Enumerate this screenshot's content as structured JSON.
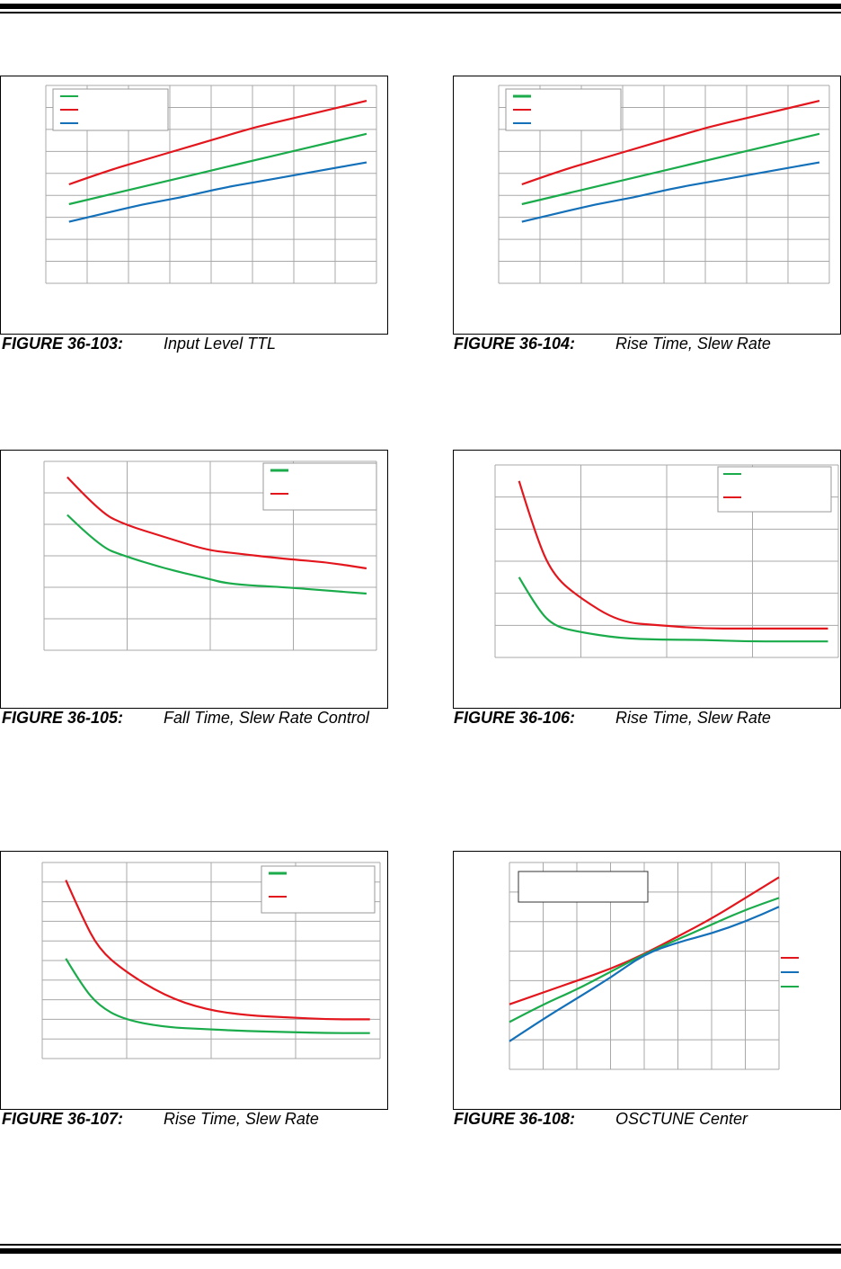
{
  "colors": {
    "green": "#1aab4b",
    "red": "#e3161d",
    "blue": "#1370b9",
    "grid": "#a8a8a8"
  },
  "captions": [
    {
      "number": "FIGURE 36-103:",
      "title": "Input Level TTL"
    },
    {
      "number": "FIGURE 36-104:",
      "title": "Rise Time, Slew Rate"
    },
    {
      "number": "FIGURE 36-105:",
      "title": "Fall Time, Slew Rate Control"
    },
    {
      "number": "FIGURE 36-106:",
      "title": "Rise Time, Slew Rate"
    },
    {
      "number": "FIGURE 36-107:",
      "title": "Rise Time, Slew Rate"
    },
    {
      "number": "FIGURE 36-108:",
      "title": "OSCTUNE Center"
    }
  ],
  "chart_data": [
    {
      "type": "line",
      "grid": true,
      "legend": "top-left",
      "x": [
        0,
        1,
        2,
        3,
        4,
        5,
        6,
        7,
        8
      ],
      "ylim": [
        0,
        9
      ],
      "series": [
        {
          "color": "red",
          "values": [
            4.5,
            5.1,
            5.6,
            6.1,
            6.6,
            7.1,
            7.5,
            7.9,
            8.3
          ]
        },
        {
          "color": "green",
          "values": [
            3.6,
            4.0,
            4.4,
            4.8,
            5.2,
            5.6,
            6.0,
            6.4,
            6.8
          ]
        },
        {
          "color": "blue",
          "values": [
            2.8,
            3.2,
            3.6,
            3.9,
            4.3,
            4.6,
            4.9,
            5.2,
            5.5
          ]
        }
      ]
    },
    {
      "type": "line",
      "grid": true,
      "legend": "top-left",
      "x": [
        0,
        1,
        2,
        3,
        4,
        5,
        6,
        7,
        8
      ],
      "ylim": [
        0,
        9
      ],
      "series": [
        {
          "color": "red",
          "values": [
            4.5,
            5.1,
            5.6,
            6.1,
            6.6,
            7.1,
            7.5,
            7.9,
            8.3
          ]
        },
        {
          "color": "green",
          "values": [
            3.6,
            4.0,
            4.4,
            4.8,
            5.2,
            5.6,
            6.0,
            6.4,
            6.8
          ]
        },
        {
          "color": "blue",
          "values": [
            2.8,
            3.2,
            3.6,
            3.9,
            4.3,
            4.6,
            4.9,
            5.2,
            5.5
          ]
        }
      ]
    },
    {
      "type": "line",
      "grid": true,
      "legend": "top-right",
      "x": [
        0.3,
        0.7,
        1.0,
        1.5,
        2.0,
        2.3,
        3.0,
        3.5,
        4.0
      ],
      "ylim": [
        0,
        6
      ],
      "series": [
        {
          "color": "red",
          "values": [
            5.5,
            4.4,
            4.0,
            3.6,
            3.2,
            3.1,
            2.9,
            2.8,
            2.6
          ]
        },
        {
          "color": "green",
          "values": [
            4.3,
            3.3,
            3.0,
            2.6,
            2.3,
            2.1,
            2.0,
            1.9,
            1.8
          ]
        }
      ]
    },
    {
      "type": "line",
      "grid": true,
      "legend": "top-right",
      "x": [
        0.3,
        0.5,
        0.7,
        1.0,
        1.5,
        2.0,
        2.5,
        3.0,
        3.5,
        4.0
      ],
      "ylim": [
        0,
        6
      ],
      "series": [
        {
          "color": "red",
          "values": [
            5.5,
            3.8,
            2.6,
            1.9,
            1.1,
            1.0,
            0.9,
            0.9,
            0.9,
            0.9
          ]
        },
        {
          "color": "green",
          "values": [
            2.5,
            1.6,
            1.0,
            0.8,
            0.6,
            0.55,
            0.55,
            0.5,
            0.5,
            0.5
          ]
        }
      ]
    },
    {
      "type": "line",
      "grid": true,
      "legend": "top-right",
      "x": [
        0.3,
        0.5,
        0.7,
        1.0,
        1.5,
        2.0,
        2.5,
        3.0,
        3.5,
        4.0
      ],
      "ylim": [
        0,
        10
      ],
      "series": [
        {
          "color": "red",
          "values": [
            9.1,
            7.2,
            5.6,
            4.5,
            3.2,
            2.5,
            2.2,
            2.1,
            2.0,
            2.0
          ]
        },
        {
          "color": "green",
          "values": [
            5.1,
            3.7,
            2.7,
            2.0,
            1.6,
            1.5,
            1.4,
            1.35,
            1.3,
            1.3
          ]
        }
      ]
    },
    {
      "type": "line",
      "grid": true,
      "legend": "right",
      "x": [
        -32,
        -24,
        -16,
        -8,
        0,
        8,
        16,
        24,
        32
      ],
      "ylim": [
        0,
        7
      ],
      "series": [
        {
          "color": "red",
          "values": [
            2.2,
            2.6,
            3.0,
            3.4,
            3.9,
            4.5,
            5.1,
            5.8,
            6.5
          ]
        },
        {
          "color": "green",
          "values": [
            1.6,
            2.2,
            2.7,
            3.3,
            3.9,
            4.4,
            4.9,
            5.4,
            5.8
          ]
        },
        {
          "color": "blue",
          "values": [
            0.95,
            1.7,
            2.4,
            3.1,
            3.9,
            4.3,
            4.6,
            5.0,
            5.5
          ]
        }
      ]
    }
  ]
}
